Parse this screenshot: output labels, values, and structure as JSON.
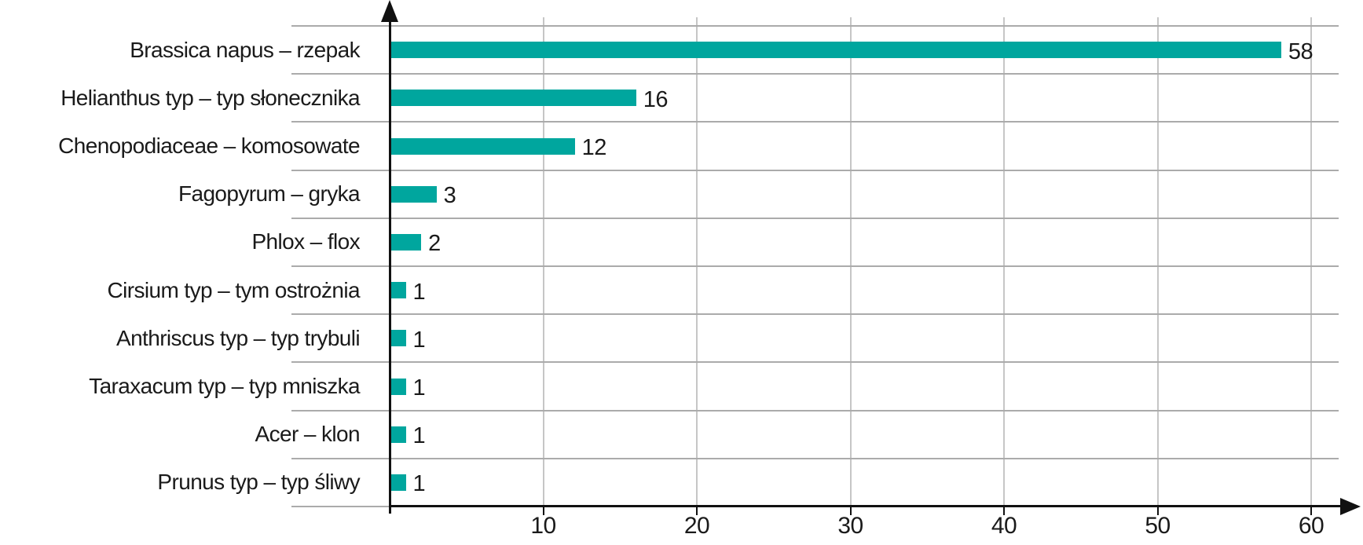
{
  "chart_data": {
    "type": "bar",
    "orientation": "horizontal",
    "title": "",
    "categories": [
      "Brassica napus – rzepak",
      "Helianthus typ – typ słonecznika",
      "Chenopodiaceae – komosowate",
      "Fagopyrum – gryka",
      "Phlox – flox",
      "Cirsium typ – tym ostrożnia",
      "Anthriscus typ – typ trybuli",
      "Taraxacum typ – typ mniszka",
      "Acer – klon",
      "Prunus typ – typ śliwy"
    ],
    "values": [
      58,
      16,
      12,
      3,
      2,
      1,
      1,
      1,
      1,
      1
    ],
    "value_labels": [
      "58",
      "16",
      "12",
      "3",
      "2",
      "1",
      "1",
      "1",
      "1",
      "1"
    ],
    "x_ticks": [
      "10",
      "20",
      "30",
      "40",
      "50",
      "60"
    ],
    "x_tick_values": [
      10,
      20,
      30,
      40,
      50,
      60
    ],
    "xlim": [
      0,
      63
    ],
    "xlabel": "",
    "ylabel": "",
    "grid": "on",
    "legend": "none",
    "colors": {
      "bar": "#00a69e",
      "axis": "#111111",
      "gridline_h": "#ababab",
      "gridline_v": "#c6c6c6",
      "text": "#1a1a1a"
    }
  }
}
